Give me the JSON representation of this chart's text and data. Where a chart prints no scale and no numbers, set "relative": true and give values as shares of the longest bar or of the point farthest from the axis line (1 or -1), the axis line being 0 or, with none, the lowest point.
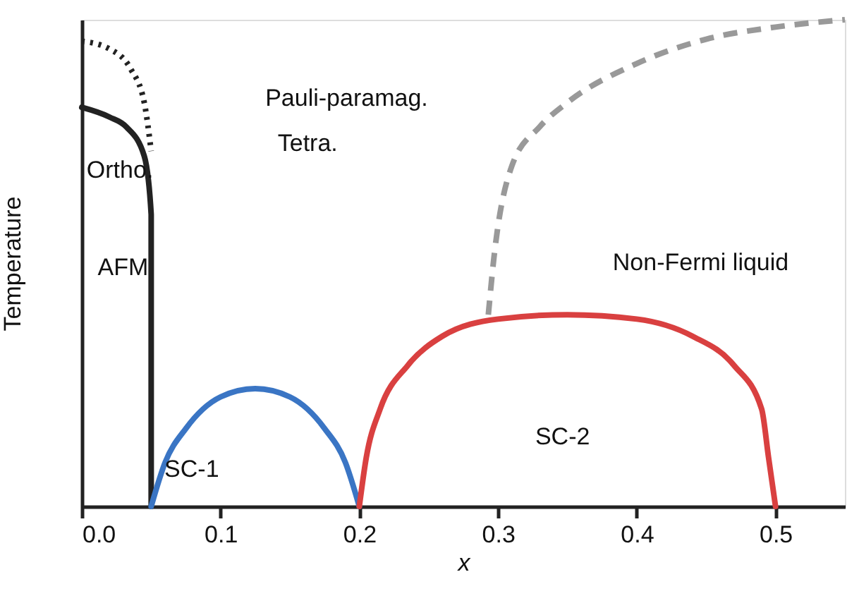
{
  "chart_data": {
    "type": "line",
    "relative": true,
    "xlabel": "x",
    "ylabel": "Temperature",
    "xlim": [
      0,
      0.55
    ],
    "xticks": [
      {
        "value": 0,
        "label": "0.0"
      },
      0.1,
      0.2,
      0.3,
      0.4,
      0.5
    ],
    "tick_labels": "x",
    "grid": false,
    "marker": "none",
    "series": [
      {
        "color": "#222222",
        "line_style": "solid",
        "x": [
          0,
          0.02,
          0.032,
          0.045,
          0.05,
          0.05
        ],
        "values": [
          0.82,
          0.8,
          0.78,
          0.72,
          0.6,
          0
        ]
      },
      {
        "color": "#222222",
        "line_style": "dotted",
        "x": [
          0,
          0.02,
          0.035,
          0.045,
          0.05
        ],
        "values": [
          0.956,
          0.94,
          0.9,
          0.83,
          0.73
        ]
      },
      {
        "color": "#3a75c4",
        "line_style": "solid",
        "x": [
          0.05,
          0.06,
          0.075,
          0.1,
          0.125,
          0.15,
          0.175,
          0.19,
          0.2
        ],
        "values": [
          0,
          0.09,
          0.16,
          0.225,
          0.242,
          0.225,
          0.16,
          0.09,
          0
        ]
      },
      {
        "color": "#d94040",
        "line_style": "solid",
        "x": [
          0.2,
          0.205,
          0.215,
          0.235,
          0.26,
          0.3,
          0.35,
          0.4,
          0.44,
          0.47,
          0.49,
          0.495,
          0.5
        ],
        "values": [
          0,
          0.1,
          0.2,
          0.29,
          0.35,
          0.385,
          0.394,
          0.385,
          0.35,
          0.29,
          0.2,
          0.1,
          0
        ]
      },
      {
        "color": "#999999",
        "line_style": "dashed",
        "x": [
          0.293,
          0.297,
          0.31,
          0.33,
          0.35,
          0.4,
          0.45,
          0.5,
          0.55
        ],
        "values": [
          0.394,
          0.51,
          0.7,
          0.78,
          0.83,
          0.91,
          0.96,
          0.985,
          1.0
        ]
      }
    ],
    "annotations": [
      "Ortho.",
      "Pauli-paramag.",
      "Tetra.",
      "AFM",
      "Non-Fermi liquid",
      "SC-1",
      "SC-2"
    ]
  }
}
